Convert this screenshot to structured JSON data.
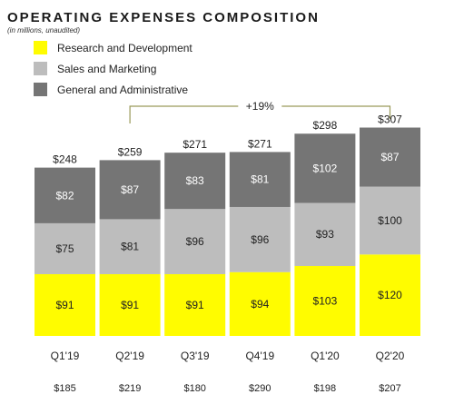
{
  "chart_data": {
    "type": "bar",
    "stacked": true,
    "title": "OPERATING EXPENSES COMPOSITION",
    "subtitle": "(in millions, unaudited)",
    "categories": [
      "Q1'19",
      "Q2'19",
      "Q3'19",
      "Q4'19",
      "Q1'20",
      "Q2'20"
    ],
    "series": [
      {
        "name": "Research and Development",
        "color": "#FFFC00",
        "values": [
          91,
          91,
          91,
          94,
          103,
          120
        ]
      },
      {
        "name": "Sales and Marketing",
        "color": "#BDBDBD",
        "values": [
          75,
          81,
          96,
          96,
          93,
          100
        ]
      },
      {
        "name": "General and Administrative",
        "color": "#757575",
        "values": [
          82,
          87,
          83,
          81,
          102,
          87
        ]
      }
    ],
    "totals": [
      248,
      259,
      271,
      271,
      298,
      307
    ],
    "bottom_values": [
      185,
      219,
      180,
      290,
      198,
      207
    ],
    "annotation": {
      "label": "+19%",
      "from": "Q2'19",
      "to": "Q2'20",
      "color": "#9a9a5a"
    },
    "legend_position": "top-left",
    "grid": false,
    "ylim": [
      0,
      310
    ],
    "value_prefix": "$"
  }
}
